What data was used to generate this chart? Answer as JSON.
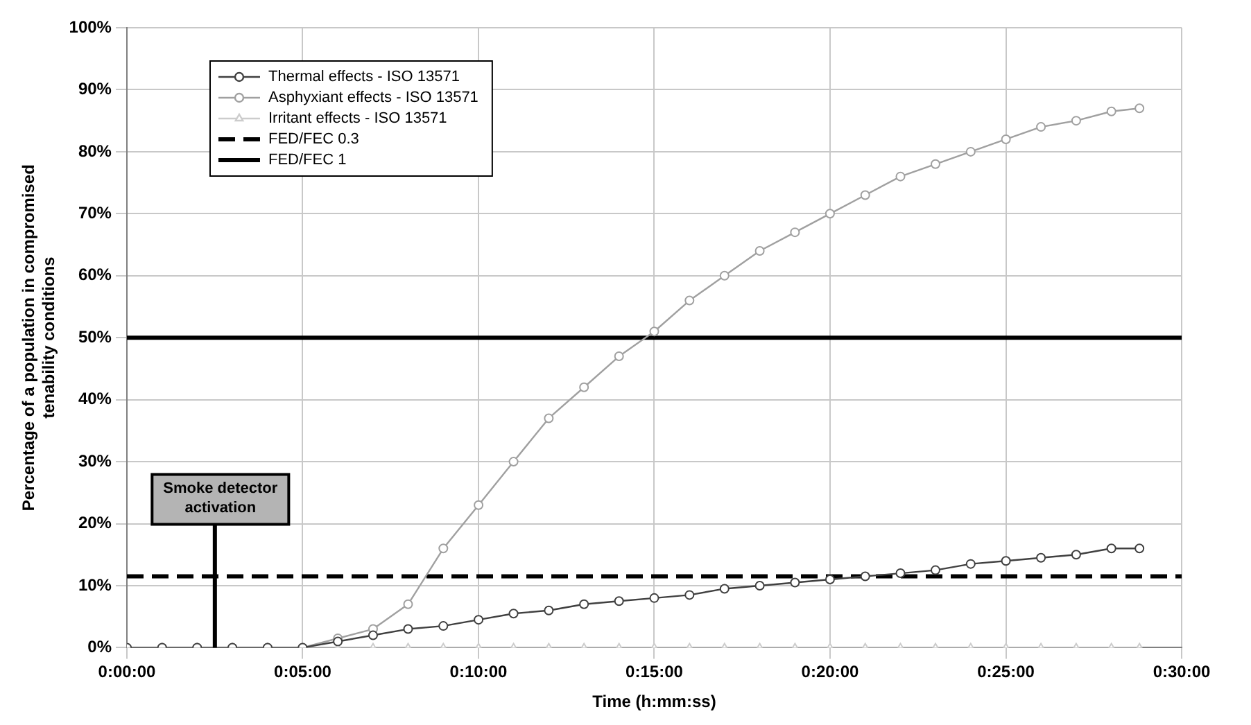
{
  "chart_data": {
    "type": "line",
    "xlabel": "Time (h:mm:ss)",
    "ylabel": "Percentage of a population in compromised\ntenability conditions",
    "x": [
      0,
      0.0167,
      0.0333,
      0.05,
      0.0667,
      0.0833,
      0.1,
      0.1167,
      0.1333,
      0.15,
      0.1667,
      0.1833,
      0.2,
      0.2167,
      0.2333,
      0.25,
      0.2667,
      0.2833,
      0.3,
      0.3167,
      0.3333,
      0.35,
      0.3667,
      0.3833,
      0.4,
      0.4167,
      0.4333,
      0.45,
      0.4667,
      0.48
    ],
    "series": [
      {
        "name": "Thermal effects - ISO 13571",
        "color": "#404040",
        "marker": "circle",
        "values": [
          0,
          0,
          0,
          0,
          0,
          0,
          1,
          2,
          3,
          3.5,
          4.5,
          5.5,
          6,
          7,
          7.5,
          8,
          8.5,
          9.5,
          10,
          10.5,
          11,
          11.5,
          12,
          12.5,
          13.5,
          14,
          14.5,
          15,
          16,
          16
        ]
      },
      {
        "name": "Asphyxiant effects - ISO 13571",
        "color": "#a0a0a0",
        "marker": "circle",
        "values": [
          0,
          0,
          0,
          0,
          0,
          0,
          1.5,
          3,
          7,
          16,
          23,
          30,
          37,
          42,
          47,
          51,
          56,
          60,
          64,
          67,
          70,
          73,
          76,
          78,
          80,
          82,
          84,
          85,
          86.5,
          87
        ]
      },
      {
        "name": "Irritant effects - ISO 13571",
        "color": "#cccccc",
        "marker": "triangle",
        "values": [
          0,
          0,
          0,
          0,
          0,
          0,
          0,
          0,
          0,
          0,
          0,
          0,
          0,
          0,
          0,
          0,
          0,
          0,
          0,
          0,
          0,
          0,
          0,
          0,
          0,
          0,
          0,
          0,
          0,
          0
        ]
      }
    ],
    "ref_lines": [
      {
        "axis": "y",
        "value": 11.5,
        "label": "FED/FEC 0.3",
        "color": "#000000",
        "line_style": "dashed"
      },
      {
        "axis": "y",
        "value": 50,
        "label": "FED/FEC 1",
        "color": "#000000",
        "line_style": "solid"
      }
    ],
    "annotations": [
      {
        "text": "Smoke detector\nactivation",
        "x": 0.0417,
        "y": 0
      }
    ],
    "xlim": [
      0,
      0.5
    ],
    "xticks": [
      {
        "value": 0,
        "label": "0:00:00"
      },
      {
        "value": 0.08333,
        "label": "0:05:00"
      },
      {
        "value": 0.16667,
        "label": "0:10:00"
      },
      {
        "value": 0.25,
        "label": "0:15:00"
      },
      {
        "value": 0.33333,
        "label": "0:20:00"
      },
      {
        "value": 0.41667,
        "label": "0:25:00"
      },
      {
        "value": 0.5,
        "label": "0:30:00"
      }
    ],
    "ylim": [
      0,
      100
    ],
    "yticks": [
      {
        "value": 0,
        "label": "0%"
      },
      {
        "value": 10,
        "label": "10%"
      },
      {
        "value": 20,
        "label": "20%"
      },
      {
        "value": 30,
        "label": "30%"
      },
      {
        "value": 40,
        "label": "40%"
      },
      {
        "value": 50,
        "label": "50%"
      },
      {
        "value": 60,
        "label": "60%"
      },
      {
        "value": 70,
        "label": "70%"
      },
      {
        "value": 80,
        "label": "80%"
      },
      {
        "value": 90,
        "label": "90%"
      },
      {
        "value": 100,
        "label": "100%"
      }
    ],
    "grid": true,
    "legend": "top left",
    "line_style": "solid"
  }
}
